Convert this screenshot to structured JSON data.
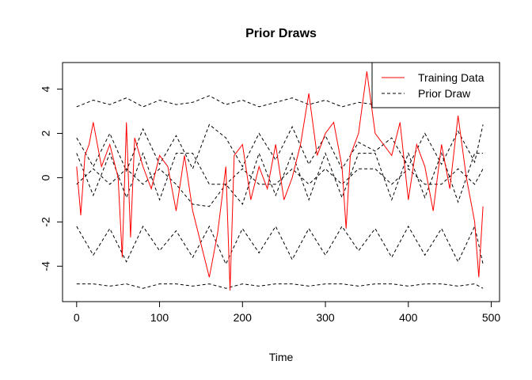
{
  "chart_data": {
    "type": "line",
    "title": "Prior Draws",
    "xlabel": "Time",
    "ylabel": "",
    "xlim": [
      -17,
      510
    ],
    "ylim": [
      -5.6,
      5.2
    ],
    "xticks": [
      0,
      100,
      200,
      300,
      400,
      500
    ],
    "yticks": [
      -4,
      -2,
      0,
      2,
      4
    ],
    "grid": false,
    "legend": {
      "placement": "top-right",
      "entries": [
        {
          "label": "Training Data",
          "color": "#ff0000",
          "style": "solid"
        },
        {
          "label": "Prior Draw",
          "color": "#000000",
          "style": "dashed"
        }
      ]
    },
    "series": [
      {
        "name": "Training Data",
        "color": "#ff0000",
        "style": "solid",
        "x": [
          0,
          5,
          10,
          15,
          20,
          30,
          40,
          50,
          55,
          60,
          65,
          70,
          80,
          90,
          100,
          110,
          120,
          130,
          140,
          150,
          160,
          170,
          180,
          185,
          190,
          200,
          210,
          220,
          230,
          240,
          250,
          260,
          270,
          280,
          290,
          300,
          310,
          320,
          325,
          330,
          340,
          350,
          360,
          370,
          380,
          390,
          400,
          410,
          420,
          430,
          440,
          450,
          460,
          470,
          480,
          485,
          490
        ],
        "y": [
          0.5,
          -1.7,
          1,
          1.5,
          2.5,
          0.5,
          1.5,
          0,
          -3.6,
          2.5,
          -2.7,
          1.8,
          0.5,
          -0.5,
          1,
          0.5,
          -1.5,
          1,
          -1.5,
          -3,
          -4.5,
          -2.5,
          0.5,
          -5.1,
          1,
          1.5,
          -1,
          0.5,
          -0.5,
          1.5,
          -1,
          0,
          1.5,
          3.8,
          1,
          2,
          2.5,
          0.5,
          -2.3,
          1,
          2,
          4.8,
          2,
          1.5,
          1,
          2.5,
          -1,
          1.5,
          0.5,
          -1.5,
          1.5,
          -0.5,
          2.8,
          0,
          -2,
          -4.5,
          -1.3
        ]
      },
      {
        "name": "Prior Draw",
        "color": "#000000",
        "style": "dashed",
        "x": [
          0,
          20,
          40,
          60,
          80,
          100,
          120,
          140,
          160,
          180,
          200,
          220,
          240,
          260,
          280,
          300,
          320,
          340,
          360,
          380,
          400,
          420,
          440,
          460,
          480,
          490
        ],
        "y": [
          3.2,
          3.5,
          3.3,
          3.6,
          3.2,
          3.5,
          3.3,
          3.4,
          3.7,
          3.3,
          3.5,
          3.2,
          3.4,
          3.6,
          3.3,
          3.5,
          3.2,
          3.4,
          3.3,
          3.5,
          3.2,
          3.4,
          3.3,
          3.5,
          3.2,
          3.3
        ]
      },
      {
        "name": "Prior Draw",
        "color": "#000000",
        "style": "dashed",
        "x": [
          0,
          20,
          40,
          60,
          80,
          100,
          120,
          140,
          160,
          180,
          200,
          220,
          240,
          260,
          280,
          300,
          320,
          340,
          360,
          380,
          400,
          420,
          440,
          460,
          480,
          490
        ],
        "y": [
          1.8,
          0.5,
          2.0,
          0.3,
          2.2,
          0.6,
          1.9,
          0.4,
          2.4,
          1.8,
          0.5,
          2.0,
          0.8,
          2.3,
          0.6,
          1.9,
          0.4,
          1.6,
          1.2,
          1.8,
          0.5,
          2.0,
          0.6,
          2.1,
          0.7,
          2.4
        ]
      },
      {
        "name": "Prior Draw",
        "color": "#000000",
        "style": "dashed",
        "x": [
          0,
          20,
          40,
          60,
          80,
          100,
          120,
          140,
          160,
          180,
          200,
          220,
          240,
          260,
          280,
          300,
          320,
          340,
          360,
          380,
          400,
          420,
          440,
          460,
          480,
          490
        ],
        "y": [
          1.1,
          -0.8,
          1.1,
          -0.9,
          1.1,
          -1.0,
          1.1,
          1.1,
          -0.3,
          -0.3,
          -1.2,
          1.1,
          -0.8,
          1.1,
          -1.0,
          1.1,
          -0.9,
          1.1,
          1.1,
          -1.0,
          1.1,
          -0.9,
          1.1,
          -1.1,
          1.1,
          1.1
        ]
      },
      {
        "name": "Prior Draw",
        "color": "#000000",
        "style": "dashed",
        "x": [
          0,
          20,
          40,
          60,
          80,
          100,
          120,
          140,
          160,
          180,
          200,
          220,
          240,
          260,
          280,
          300,
          320,
          340,
          360,
          380,
          400,
          420,
          440,
          460,
          480,
          490
        ],
        "y": [
          -0.3,
          0.4,
          -0.3,
          0.4,
          -0.3,
          0.4,
          -0.3,
          -1.2,
          -1.3,
          -0.3,
          0.4,
          -0.3,
          -0.3,
          0.4,
          -0.3,
          0.4,
          -0.3,
          0.4,
          0.4,
          -0.3,
          0.4,
          -0.3,
          -0.3,
          0.4,
          -0.3,
          0.4
        ]
      },
      {
        "name": "Prior Draw",
        "color": "#000000",
        "style": "dashed",
        "x": [
          0,
          20,
          40,
          60,
          80,
          100,
          120,
          140,
          160,
          180,
          200,
          220,
          240,
          260,
          280,
          300,
          320,
          340,
          360,
          380,
          400,
          420,
          440,
          460,
          480,
          490
        ],
        "y": [
          -2.2,
          -3.5,
          -2.3,
          -3.8,
          -2.2,
          -3.3,
          -2.4,
          -3.6,
          -2.2,
          -3.9,
          -2.3,
          -3.4,
          -2.2,
          -3.7,
          -2.3,
          -3.5,
          -2.2,
          -3.3,
          -2.3,
          -3.6,
          -2.2,
          -3.5,
          -2.3,
          -3.8,
          -2.2,
          -3.9
        ]
      },
      {
        "name": "Prior Draw",
        "color": "#000000",
        "style": "dashed",
        "x": [
          0,
          20,
          40,
          60,
          80,
          100,
          120,
          140,
          160,
          180,
          200,
          220,
          240,
          260,
          280,
          300,
          320,
          340,
          360,
          380,
          400,
          420,
          440,
          460,
          480,
          490
        ],
        "y": [
          -4.8,
          -4.8,
          -4.9,
          -4.8,
          -5.0,
          -4.8,
          -4.8,
          -4.9,
          -4.8,
          -5.0,
          -4.8,
          -4.9,
          -4.8,
          -4.8,
          -4.9,
          -4.8,
          -4.8,
          -4.9,
          -4.8,
          -4.8,
          -4.9,
          -4.8,
          -4.8,
          -4.9,
          -4.8,
          -5.0
        ]
      }
    ]
  }
}
